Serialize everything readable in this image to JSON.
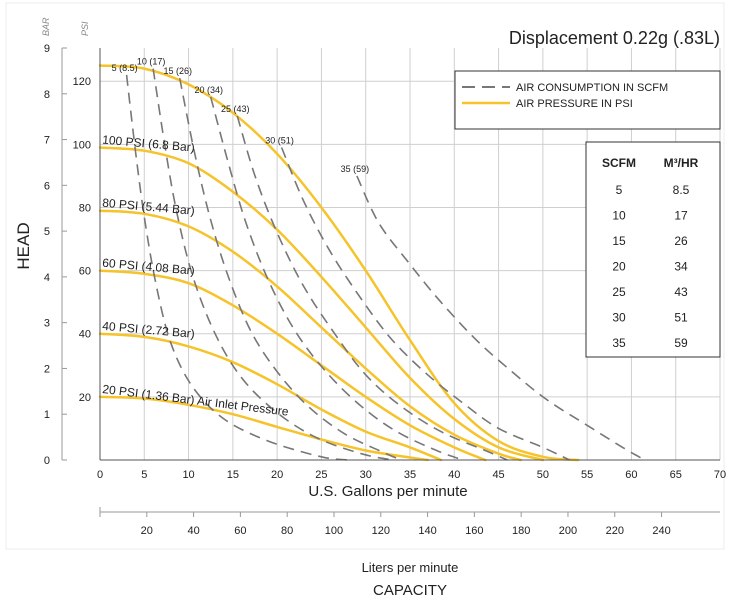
{
  "chart_data": {
    "type": "line",
    "title": "Displacement 0.22g (.83L)",
    "ylabel": "HEAD",
    "xlabel": "U.S. Gallons per minute",
    "x2label": "Liters per minute",
    "bottom_label": "CAPACITY",
    "y_unit_bar": "BAR",
    "y_unit_psi": "PSI",
    "xlim": [
      0,
      70
    ],
    "x_ticks": [
      "0",
      "5",
      "10",
      "15",
      "20",
      "25",
      "30",
      "35",
      "40",
      "45",
      "50",
      "55",
      "60",
      "65",
      "70"
    ],
    "x2_ticks": [
      "20",
      "40",
      "60",
      "80",
      "100",
      "120",
      "140",
      "160",
      "180",
      "200",
      "220",
      "240"
    ],
    "ylim_psi": [
      0,
      130
    ],
    "y_psi_ticks": [
      "20",
      "40",
      "60",
      "80",
      "100",
      "120"
    ],
    "y_bar_ticks": [
      "0",
      "1",
      "2",
      "3",
      "4",
      "5",
      "6",
      "7",
      "8",
      "9"
    ],
    "legend": {
      "dashed": "AIR CONSUMPTION IN SCFM",
      "solid": "AIR PRESSURE IN PSI",
      "placement": "top-right"
    },
    "colors": {
      "pressure": "#f6c32a",
      "consumption": "#777777",
      "grid": "#cfcfcf"
    },
    "pressure_series": [
      {
        "label": "",
        "points": [
          [
            0,
            125
          ],
          [
            5,
            124
          ],
          [
            10,
            119
          ],
          [
            15,
            110
          ],
          [
            20,
            97
          ],
          [
            25,
            80
          ],
          [
            30,
            60
          ],
          [
            35,
            38
          ],
          [
            40,
            18
          ],
          [
            45,
            6
          ],
          [
            50,
            1
          ],
          [
            54,
            0
          ]
        ]
      },
      {
        "label": "100 PSI (6.8 Bar)",
        "points": [
          [
            0,
            99
          ],
          [
            5,
            98
          ],
          [
            10,
            94
          ],
          [
            15,
            85
          ],
          [
            20,
            73
          ],
          [
            25,
            58
          ],
          [
            30,
            42
          ],
          [
            35,
            26
          ],
          [
            40,
            13
          ],
          [
            45,
            4
          ],
          [
            50,
            0
          ]
        ]
      },
      {
        "label": "80 PSI (5.44 Bar)",
        "points": [
          [
            0,
            79
          ],
          [
            5,
            78
          ],
          [
            10,
            74
          ],
          [
            15,
            66
          ],
          [
            20,
            55
          ],
          [
            25,
            42
          ],
          [
            30,
            29
          ],
          [
            35,
            17
          ],
          [
            40,
            8
          ],
          [
            45,
            2
          ],
          [
            47.5,
            0
          ]
        ]
      },
      {
        "label": "60 PSI (4.08 Bar)",
        "points": [
          [
            0,
            60
          ],
          [
            5,
            59
          ],
          [
            10,
            56
          ],
          [
            15,
            49
          ],
          [
            20,
            40
          ],
          [
            25,
            30
          ],
          [
            30,
            20
          ],
          [
            35,
            11
          ],
          [
            40,
            4
          ],
          [
            43.5,
            0
          ]
        ]
      },
      {
        "label": "40 PSI (2.72 Bar)",
        "points": [
          [
            0,
            40
          ],
          [
            5,
            39
          ],
          [
            10,
            36
          ],
          [
            15,
            31
          ],
          [
            20,
            24
          ],
          [
            25,
            16
          ],
          [
            30,
            9
          ],
          [
            35,
            4
          ],
          [
            38.5,
            0
          ]
        ]
      },
      {
        "label": "20 PSI (1.36 Bar) Air Inlet Pressure",
        "points": [
          [
            0,
            20
          ],
          [
            5,
            19.5
          ],
          [
            10,
            17.5
          ],
          [
            15,
            14.5
          ],
          [
            20,
            10.5
          ],
          [
            25,
            6.5
          ],
          [
            30,
            3
          ],
          [
            35,
            0.8
          ],
          [
            37,
            0
          ]
        ]
      }
    ],
    "air_consumption_series": [
      {
        "label": "5 (8.5)",
        "points": [
          [
            3,
            122
          ],
          [
            4,
            98
          ],
          [
            5,
            77
          ],
          [
            6.3,
            56
          ],
          [
            8,
            37
          ],
          [
            10.5,
            23
          ],
          [
            14,
            13
          ],
          [
            19,
            6
          ],
          [
            25,
            1
          ],
          [
            28,
            0
          ]
        ]
      },
      {
        "label": "10 (17)",
        "points": [
          [
            6,
            124
          ],
          [
            7.3,
            100
          ],
          [
            8.7,
            78
          ],
          [
            10.5,
            58
          ],
          [
            13,
            40
          ],
          [
            16,
            26
          ],
          [
            20,
            15
          ],
          [
            24.5,
            7
          ],
          [
            29.5,
            2
          ],
          [
            33,
            0
          ]
        ]
      },
      {
        "label": "15 (26)",
        "points": [
          [
            9,
            121
          ],
          [
            10.7,
            97
          ],
          [
            12.5,
            76
          ],
          [
            14.5,
            58
          ],
          [
            17,
            41
          ],
          [
            20,
            28
          ],
          [
            23.5,
            17
          ],
          [
            27.5,
            8.5
          ],
          [
            31.5,
            3
          ],
          [
            34,
            0
          ]
        ]
      },
      {
        "label": "20 (34)",
        "points": [
          [
            12.5,
            115
          ],
          [
            14.5,
            94
          ],
          [
            16.5,
            75
          ],
          [
            19,
            57
          ],
          [
            22,
            41
          ],
          [
            25.5,
            28
          ],
          [
            29.5,
            17
          ],
          [
            33.5,
            9
          ],
          [
            38,
            3
          ],
          [
            41,
            0
          ]
        ]
      },
      {
        "label": "25 (43)",
        "points": [
          [
            15.5,
            109
          ],
          [
            17.5,
            90
          ],
          [
            20,
            72
          ],
          [
            23,
            55
          ],
          [
            26.5,
            40
          ],
          [
            30,
            27
          ],
          [
            34,
            17
          ],
          [
            38.5,
            9
          ],
          [
            43.5,
            3
          ],
          [
            46,
            0
          ]
        ]
      },
      {
        "label": "30 (51)",
        "points": [
          [
            20.5,
            99
          ],
          [
            23,
            82
          ],
          [
            26,
            66
          ],
          [
            29.5,
            51
          ],
          [
            33,
            38
          ],
          [
            37,
            27
          ],
          [
            41,
            18
          ],
          [
            45,
            10
          ],
          [
            50,
            4
          ],
          [
            53,
            0
          ]
        ]
      },
      {
        "label": "35 (59)",
        "points": [
          [
            29,
            90
          ],
          [
            31.5,
            75
          ],
          [
            35,
            62
          ],
          [
            38.5,
            50
          ],
          [
            42.5,
            38
          ],
          [
            46.5,
            28
          ],
          [
            50.5,
            19
          ],
          [
            55,
            11
          ],
          [
            59,
            4
          ],
          [
            61.5,
            0
          ]
        ]
      }
    ],
    "table": {
      "headers": [
        "SCFM",
        "M³/HR"
      ],
      "rows": [
        [
          "5",
          "8.5"
        ],
        [
          "10",
          "17"
        ],
        [
          "15",
          "26"
        ],
        [
          "20",
          "34"
        ],
        [
          "25",
          "43"
        ],
        [
          "30",
          "51"
        ],
        [
          "35",
          "59"
        ]
      ]
    }
  }
}
